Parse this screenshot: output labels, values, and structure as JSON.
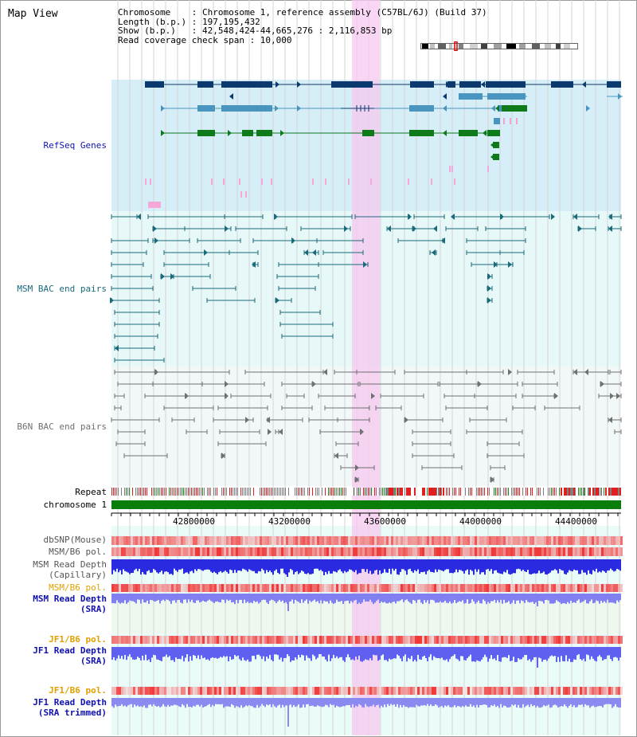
{
  "view_title": "Map View",
  "header": {
    "line1": "Chromosome    : Chromosome 1, reference assembly (C57BL/6J) (Build 37)",
    "line2": "Length (b.p.) : 197,195,432",
    "line3": "Show (b.p.)   : 42,548,424-44,665,276 : 2,116,853 bp",
    "line4": "Read coverage check span : 10,000"
  },
  "tracks": {
    "refseq": "RefSeq Genes",
    "msm_bac": "MSM BAC end pairs",
    "b6n_bac": "B6N BAC end pairs",
    "repeat": "Repeat",
    "chromosome": "chromosome 1",
    "dbsnp": "dbSNP(Mouse)",
    "msm_b6_pol": "MSM/B6 pol.",
    "msm_depth_cap_1": "MSM Read Depth",
    "msm_depth_cap_2": "(Capillary)",
    "msm_b6_pol2": "MSM/B6 pol.",
    "msm_depth_sra_1": "MSM Read Depth",
    "msm_depth_sra_2": "(SRA)",
    "jf1_b6_pol": "JF1/B6 pol.",
    "jf1_depth_sra_1": "JF1 Read Depth",
    "jf1_depth_sra_2": "(SRA)",
    "jf1_b6_pol2": "JF1/B6 pol.",
    "jf1_depth_trim_1": "JF1 Read Depth",
    "jf1_depth_trim_2": "(SRA trimmed)"
  },
  "axis": {
    "ticks": [
      "42800000",
      "43200000",
      "43600000",
      "44000000",
      "44400000"
    ]
  },
  "colors": {
    "refseq_bg": "#d6eef8",
    "bac_bg": "#e6f8f8",
    "b6n_bg": "#f2f8f8",
    "highlight": "#f6c8f0",
    "gene_dark": "#0c3a6e",
    "gene_mid": "#4a95c0",
    "gene_green": "#0f7a1a",
    "chromosome": "#0b7d0b",
    "label_blue": "#1010b0",
    "label_teal": "#1a6a7a",
    "label_orange": "#e0a000"
  }
}
